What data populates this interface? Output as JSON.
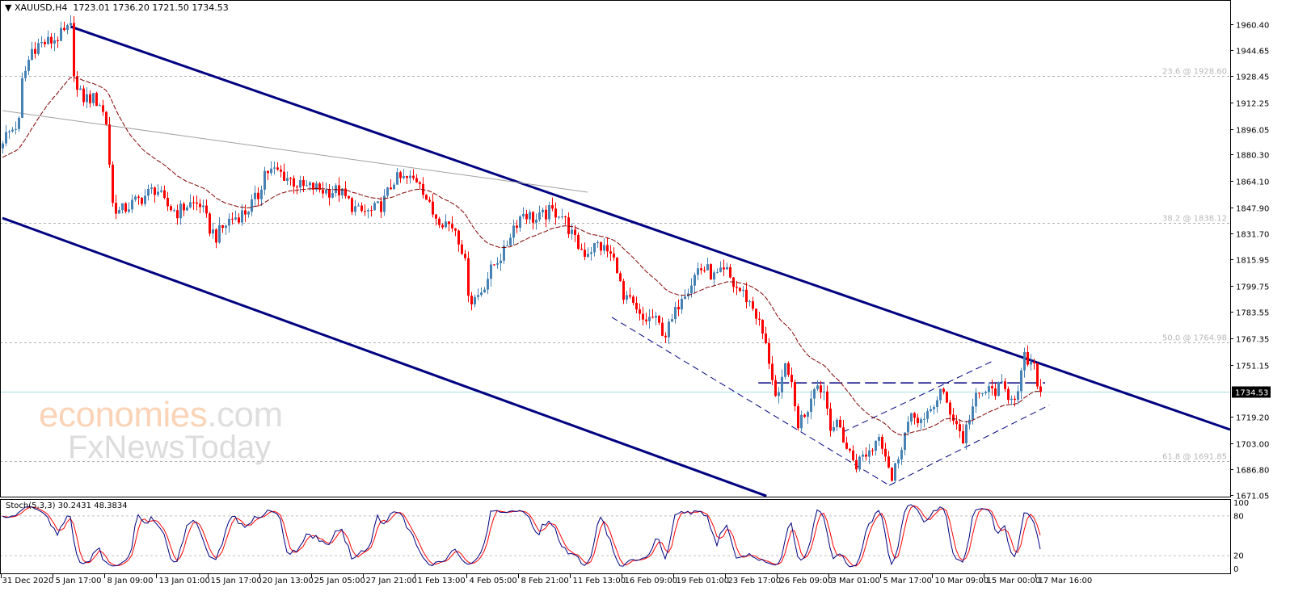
{
  "header": {
    "symbol": "XAUUSD,H4",
    "ohlc": "1723.01 1736.20 1721.50 1734.53",
    "menu_icon": "triangle-down-icon"
  },
  "watermark": {
    "brand": "economies",
    "domain": ".com",
    "sub": "FxNewsToday"
  },
  "stoch": {
    "label": "Stoch(5,3,3)",
    "main": "30.2431",
    "signal": "48.3834",
    "levels": [
      "100",
      "80",
      "20",
      "0"
    ]
  },
  "colors": {
    "up": "#4682b4",
    "down": "#ff0000",
    "ma": "#800000",
    "channel": "#000080",
    "trend": "#a0a0a0",
    "price_line": "#a8dde0",
    "stoch_main": "#000080",
    "stoch_signal": "#ff0000"
  },
  "chart_data": {
    "type": "candlestick",
    "title": "XAUUSD,H4",
    "ylim": [
      1670.1,
      1975.3
    ],
    "y_ticks": [
      "1960.40",
      "1944.65",
      "1928.45",
      "1912.25",
      "1896.05",
      "1880.30",
      "1864.10",
      "1847.90",
      "1831.70",
      "1815.95",
      "1799.75",
      "1783.55",
      "1767.35",
      "1751.15",
      "1719.20",
      "1703.00",
      "1686.80",
      "1671.05"
    ],
    "x_ticks": [
      "31 Dec 2020",
      "5 Jan 17:00",
      "8 Jan 09:00",
      "13 Jan 01:00",
      "15 Jan 17:00",
      "20 Jan 13:00",
      "25 Jan 05:00",
      "27 Jan 21:00",
      "1 Feb 13:00",
      "4 Feb 05:00",
      "8 Feb 21:00",
      "11 Feb 13:00",
      "16 Feb 09:00",
      "19 Feb 01:00",
      "23 Feb 17:00",
      "26 Feb 09:00",
      "3 Mar 01:00",
      "5 Mar 17:00",
      "10 Mar 09:00",
      "15 Mar 00:00",
      "17 Mar 16:00"
    ],
    "bars_per_x_tick": 16,
    "current_price": "1734.53",
    "close_path_bar_price": [
      [
        0,
        1890
      ],
      [
        2.5,
        1895
      ],
      [
        5,
        1900
      ],
      [
        6,
        1925
      ],
      [
        9,
        1945
      ],
      [
        11,
        1948
      ],
      [
        15,
        1950
      ],
      [
        19,
        1955
      ],
      [
        21,
        1958
      ],
      [
        22.5,
        1920
      ],
      [
        25,
        1915
      ],
      [
        27.5,
        1915
      ],
      [
        30,
        1912
      ],
      [
        32,
        1900
      ],
      [
        34,
        1850
      ],
      [
        36,
        1845
      ],
      [
        40,
        1850
      ],
      [
        44,
        1855
      ],
      [
        47.5,
        1860
      ],
      [
        50,
        1850
      ],
      [
        54,
        1845
      ],
      [
        57.5,
        1850
      ],
      [
        61,
        1850
      ],
      [
        64,
        1835
      ],
      [
        66,
        1830
      ],
      [
        70,
        1840
      ],
      [
        75,
        1845
      ],
      [
        79,
        1855
      ],
      [
        81,
        1870
      ],
      [
        85,
        1870
      ],
      [
        89,
        1865
      ],
      [
        92.5,
        1860
      ],
      [
        96,
        1860
      ],
      [
        100,
        1858
      ],
      [
        104,
        1858
      ],
      [
        107.5,
        1850
      ],
      [
        110,
        1845
      ],
      [
        114,
        1845
      ],
      [
        117.5,
        1850
      ],
      [
        121,
        1865
      ],
      [
        125,
        1865
      ],
      [
        129,
        1865
      ],
      [
        132.5,
        1845
      ],
      [
        136,
        1840
      ],
      [
        140,
        1835
      ],
      [
        142.5,
        1820
      ],
      [
        144.5,
        1790
      ],
      [
        147.5,
        1795
      ],
      [
        150,
        1805
      ],
      [
        152.5,
        1815
      ],
      [
        155,
        1820
      ],
      [
        157.5,
        1835
      ],
      [
        161,
        1845
      ],
      [
        165,
        1840
      ],
      [
        169,
        1845
      ],
      [
        172.5,
        1845
      ],
      [
        175,
        1835
      ],
      [
        177.5,
        1825
      ],
      [
        180,
        1820
      ],
      [
        184,
        1825
      ],
      [
        187.5,
        1820
      ],
      [
        190.5,
        1810
      ],
      [
        191.5,
        1790
      ],
      [
        194,
        1790
      ],
      [
        197.5,
        1778
      ],
      [
        201,
        1780
      ],
      [
        205,
        1770
      ],
      [
        207.5,
        1780
      ],
      [
        210,
        1795
      ],
      [
        212.5,
        1800
      ],
      [
        215,
        1810
      ],
      [
        217.5,
        1810
      ],
      [
        220,
        1805
      ],
      [
        224,
        1808
      ],
      [
        226,
        1800
      ],
      [
        229,
        1795
      ],
      [
        232.5,
        1785
      ],
      [
        235,
        1770
      ],
      [
        237.5,
        1750
      ],
      [
        239.5,
        1725
      ],
      [
        241,
        1740
      ],
      [
        242.5,
        1755
      ],
      [
        244.5,
        1730
      ],
      [
        246,
        1715
      ],
      [
        249,
        1725
      ],
      [
        251,
        1740
      ],
      [
        254,
        1735
      ],
      [
        256,
        1715
      ],
      [
        259,
        1712
      ],
      [
        261,
        1700
      ],
      [
        264,
        1690
      ],
      [
        266,
        1695
      ],
      [
        269,
        1700
      ],
      [
        271,
        1710
      ],
      [
        274,
        1690
      ],
      [
        275,
        1680
      ],
      [
        277.5,
        1700
      ],
      [
        280,
        1715
      ],
      [
        282.5,
        1720
      ],
      [
        285,
        1715
      ],
      [
        287.5,
        1725
      ],
      [
        290,
        1735
      ],
      [
        292.5,
        1725
      ],
      [
        295,
        1715
      ],
      [
        297,
        1705
      ],
      [
        299,
        1720
      ],
      [
        301,
        1730
      ],
      [
        304,
        1735
      ],
      [
        306,
        1735
      ],
      [
        309,
        1737
      ],
      [
        311,
        1733
      ],
      [
        314,
        1733
      ],
      [
        316,
        1755
      ],
      [
        319,
        1748
      ],
      [
        321,
        1734.53
      ]
    ],
    "ma_seed": 1878,
    "fib_levels": [
      {
        "label": "23.6 @ 1928.60",
        "price": 1928.6
      },
      {
        "label": "38.2 @ 1838.12",
        "price": 1838.12
      },
      {
        "label": "50.0 @ 1764.98",
        "price": 1764.98
      },
      {
        "label": "61.8 @ 1691.85",
        "price": 1691.85
      }
    ],
    "drawings": [
      {
        "name": "upper-channel-line",
        "from": [
          21,
          1959
        ],
        "to": [
          399,
          1698
        ],
        "style": "channel"
      },
      {
        "name": "lower-channel-line",
        "from": [
          0,
          1841.3
        ],
        "to": [
          236.3,
          1670.5
        ],
        "style": "channel"
      },
      {
        "name": "grey-trendline",
        "from": [
          0,
          1907.3
        ],
        "to": [
          181,
          1857.2
        ],
        "style": "trend"
      },
      {
        "name": "wedge-lower-left-line",
        "from": [
          188.5,
          1780.3
        ],
        "to": [
          274.3,
          1677
        ],
        "style": "dash"
      },
      {
        "name": "wedge-lower-right-line",
        "from": [
          274.3,
          1677
        ],
        "to": [
          323.8,
          1726.3
        ],
        "style": "dash"
      },
      {
        "name": "wedge-upper-line",
        "from": [
          260,
          1709.8
        ],
        "to": [
          306.3,
          1753.4
        ],
        "style": "dash"
      },
      {
        "name": "neckline",
        "from": [
          233.8,
          1740
        ],
        "to": [
          322.5,
          1740
        ],
        "style": "longdash"
      }
    ]
  }
}
